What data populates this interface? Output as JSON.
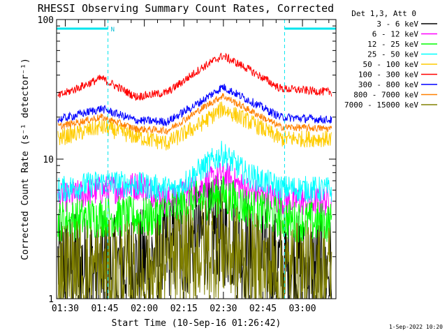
{
  "chart_data": {
    "type": "line",
    "title": "RHESSI Observing Summary Count Rates, Corrected",
    "xlabel": "Start Time (10-Sep-16 01:26:42)",
    "ylabel": "Corrected Count Rate (s⁻¹ detector⁻¹)",
    "y_scale": "log",
    "ylim": [
      1,
      100
    ],
    "y_ticks": [
      {
        "value": 1,
        "label": "1"
      },
      {
        "value": 10,
        "label": "10"
      },
      {
        "value": 100,
        "label": "100"
      }
    ],
    "xlim_minutes": [
      0,
      106
    ],
    "x_ticks": [
      {
        "minutes": 3.3,
        "label": "01:30"
      },
      {
        "minutes": 18.3,
        "label": "01:45"
      },
      {
        "minutes": 33.3,
        "label": "02:00"
      },
      {
        "minutes": 48.3,
        "label": "02:15"
      },
      {
        "minutes": 63.3,
        "label": "02:30"
      },
      {
        "minutes": 78.3,
        "label": "02:45"
      },
      {
        "minutes": 93.3,
        "label": "03:00"
      }
    ],
    "legend_header": "Det 1,3, Att 0",
    "legend_placement": "right",
    "series": [
      {
        "name": "3 - 6 keV",
        "color": "#000000",
        "anchors": [
          [
            0,
            1.8
          ],
          [
            20,
            1.6
          ],
          [
            35,
            1.9
          ],
          [
            55,
            2.8
          ],
          [
            63,
            3.0
          ],
          [
            70,
            2.3
          ],
          [
            85,
            1.7
          ],
          [
            106,
            1.6
          ]
        ],
        "noise": 0.9
      },
      {
        "name": "6 - 12 keV",
        "color": "#ff00ff",
        "anchors": [
          [
            0,
            5.2
          ],
          [
            18,
            6.0
          ],
          [
            32,
            6.5
          ],
          [
            42,
            5.0
          ],
          [
            55,
            6.4
          ],
          [
            63,
            7.8
          ],
          [
            72,
            6.0
          ],
          [
            85,
            5.0
          ],
          [
            106,
            5.0
          ]
        ],
        "noise": 0.25
      },
      {
        "name": "12 - 25 keV",
        "color": "#00ff00",
        "anchors": [
          [
            0,
            3.6
          ],
          [
            20,
            3.9
          ],
          [
            35,
            3.8
          ],
          [
            50,
            4.8
          ],
          [
            63,
            5.5
          ],
          [
            75,
            4.3
          ],
          [
            90,
            3.6
          ],
          [
            106,
            3.5
          ]
        ],
        "noise": 0.35
      },
      {
        "name": "25 - 50 keV",
        "color": "#00ffff",
        "anchors": [
          [
            0,
            6.0
          ],
          [
            18,
            6.8
          ],
          [
            32,
            6.5
          ],
          [
            45,
            6.0
          ],
          [
            55,
            8.5
          ],
          [
            63,
            11.0
          ],
          [
            72,
            7.8
          ],
          [
            85,
            6.2
          ],
          [
            106,
            6.0
          ]
        ],
        "noise": 0.22
      },
      {
        "name": "50 - 100 keV",
        "color": "#ffcc00",
        "anchors": [
          [
            0,
            14.0
          ],
          [
            17,
            17.0
          ],
          [
            30,
            14.5
          ],
          [
            42,
            13.0
          ],
          [
            55,
            18.0
          ],
          [
            63,
            23.0
          ],
          [
            72,
            19.0
          ],
          [
            85,
            14.0
          ],
          [
            106,
            14.0
          ]
        ],
        "noise": 0.14
      },
      {
        "name": "100 - 300 keV",
        "color": "#ff0000",
        "anchors": [
          [
            0,
            28.0
          ],
          [
            17,
            38.0
          ],
          [
            30,
            28.0
          ],
          [
            42,
            30.0
          ],
          [
            55,
            45.0
          ],
          [
            63,
            55.0
          ],
          [
            72,
            45.0
          ],
          [
            85,
            32.0
          ],
          [
            106,
            30.0
          ]
        ],
        "noise": 0.07
      },
      {
        "name": "300 - 800 keV",
        "color": "#0000ff",
        "anchors": [
          [
            0,
            19.0
          ],
          [
            17,
            23.0
          ],
          [
            30,
            19.0
          ],
          [
            42,
            18.5
          ],
          [
            55,
            26.0
          ],
          [
            63,
            33.0
          ],
          [
            72,
            27.0
          ],
          [
            85,
            20.0
          ],
          [
            106,
            19.0
          ]
        ],
        "noise": 0.07
      },
      {
        "name": "800 - 7000 keV",
        "color": "#ff8000",
        "anchors": [
          [
            0,
            17.0
          ],
          [
            17,
            20.0
          ],
          [
            30,
            16.5
          ],
          [
            42,
            16.0
          ],
          [
            55,
            23.0
          ],
          [
            63,
            28.5
          ],
          [
            72,
            23.0
          ],
          [
            85,
            17.0
          ],
          [
            106,
            16.5
          ]
        ],
        "noise": 0.06
      },
      {
        "name": "7000 - 15000 keV",
        "color": "#808000",
        "anchors": [
          [
            0,
            1.6
          ],
          [
            20,
            1.5
          ],
          [
            35,
            1.5
          ],
          [
            55,
            2.2
          ],
          [
            63,
            2.4
          ],
          [
            72,
            1.8
          ],
          [
            85,
            1.5
          ],
          [
            106,
            1.5
          ]
        ],
        "noise": 0.9
      }
    ],
    "annotations": {
      "night_bars": [
        [
          0,
          19.5
        ],
        [
          86.5,
          106
        ]
      ],
      "night_label": "N",
      "saa_lines_minutes": [
        19.5,
        86.5,
        106
      ]
    },
    "timestamp": "1-Sep-2022 10:20"
  }
}
